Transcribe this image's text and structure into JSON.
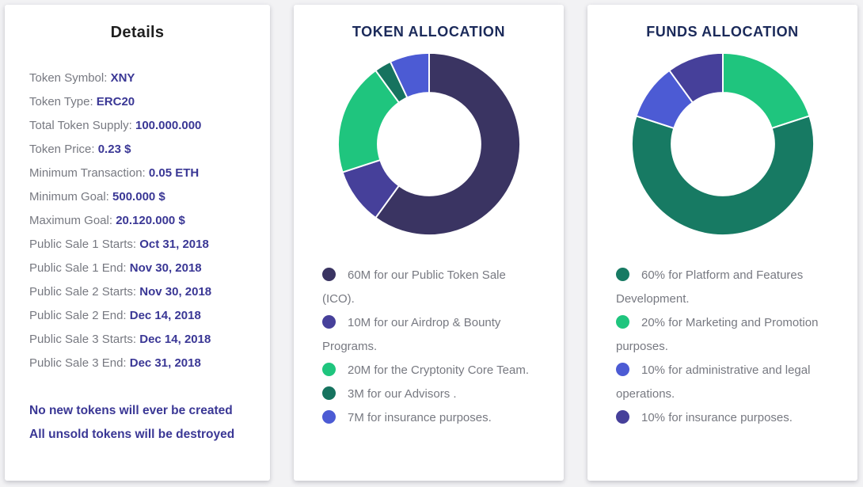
{
  "page": {
    "background": "#f2f2f4",
    "card_background": "#ffffff",
    "label_color": "#777981",
    "value_color": "#3a3795",
    "chart_title_color": "#1b2a5a"
  },
  "details": {
    "title": "Details",
    "rows": [
      {
        "label": "Token Symbol:",
        "value": "XNY"
      },
      {
        "label": "Token Type:",
        "value": "ERC20"
      },
      {
        "label": "Total Token Supply:",
        "value": "100.000.000"
      },
      {
        "label": "Token Price:",
        "value": "0.23 $"
      },
      {
        "label": "Minimum Transaction:",
        "value": "0.05 ETH"
      },
      {
        "label": "Minimum Goal:",
        "value": "500.000 $"
      },
      {
        "label": "Maximum Goal:",
        "value": "20.120.000 $"
      },
      {
        "label": "Public Sale 1 Starts:",
        "value": "Oct 31, 2018"
      },
      {
        "label": "Public Sale 1 End:",
        "value": "Nov 30, 2018"
      },
      {
        "label": "Public Sale 2 Starts:",
        "value": "Nov 30, 2018"
      },
      {
        "label": "Public Sale 2 End:",
        "value": "Dec 14, 2018"
      },
      {
        "label": "Public Sale 3 Starts:",
        "value": "Dec 14, 2018"
      },
      {
        "label": "Public Sale 3 End:",
        "value": "Dec 31, 2018"
      }
    ],
    "notes": [
      "No new tokens will ever be created",
      "All unsold tokens will be destroyed"
    ]
  },
  "chart_data": [
    {
      "type": "pie",
      "subtype": "donut",
      "title": "TOKEN ALLOCATION",
      "unit": "M (millions of tokens)",
      "total": 100,
      "start_angle": "top",
      "direction": "clockwise",
      "slices": [
        {
          "name": "Public Token Sale (ICO)",
          "value": 60,
          "color": "#3a3462"
        },
        {
          "name": "Airdrop & Bounty Programs",
          "value": 10,
          "color": "#46409a"
        },
        {
          "name": "Cryptonity Core Team",
          "value": 20,
          "color": "#1fc57e"
        },
        {
          "name": "Advisors",
          "value": 3,
          "color": "#16735f"
        },
        {
          "name": "Insurance",
          "value": 7,
          "color": "#4c5bd4"
        }
      ],
      "legend": [
        {
          "text": "60M for our Public Token Sale (ICO).",
          "color": "#3a3462"
        },
        {
          "text": "10M for our Airdrop & Bounty Programs.",
          "color": "#46409a"
        },
        {
          "text": "20M for the Cryptonity Core Team.",
          "color": "#1fc57e"
        },
        {
          "text": "3M for our Advisors .",
          "color": "#16735f"
        },
        {
          "text": "7M for insurance purposes.",
          "color": "#4c5bd4"
        }
      ]
    },
    {
      "type": "pie",
      "subtype": "donut",
      "title": "FUNDS ALLOCATION",
      "unit": "%",
      "total": 100,
      "start_angle": "top",
      "direction": "clockwise",
      "slices": [
        {
          "name": "Marketing and Promotion",
          "value": 20,
          "color": "#1fc57e"
        },
        {
          "name": "Platform and Features Development",
          "value": 60,
          "color": "#177a63"
        },
        {
          "name": "Administrative and legal operations",
          "value": 10,
          "color": "#4c5bd4"
        },
        {
          "name": "Insurance",
          "value": 10,
          "color": "#46409a"
        }
      ],
      "legend": [
        {
          "text": "60% for Platform and Features Development.",
          "color": "#177a63"
        },
        {
          "text": "20% for Marketing and Promotion purposes.",
          "color": "#1fc57e"
        },
        {
          "text": "10% for administrative and legal operations.",
          "color": "#4c5bd4"
        },
        {
          "text": "10% for insurance purposes.",
          "color": "#46409a"
        }
      ]
    }
  ]
}
